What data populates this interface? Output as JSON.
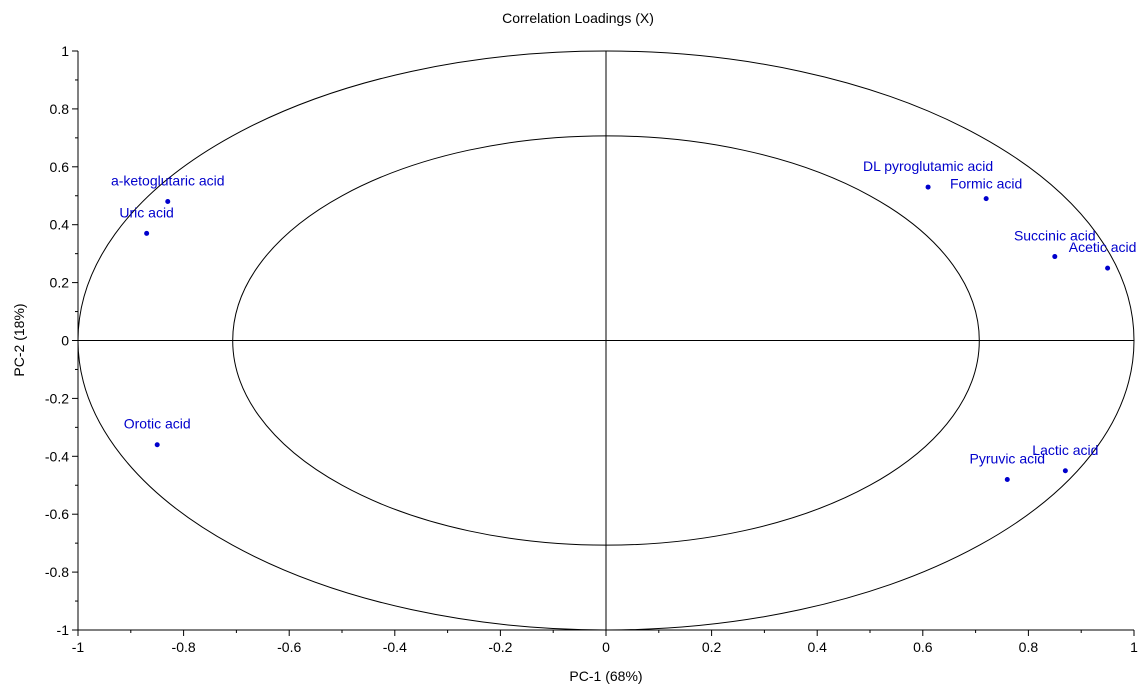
{
  "chart_data": {
    "type": "scatter",
    "title": "Correlation Loadings (X)",
    "xlabel": "PC-1 (68%)",
    "ylabel": "PC-2 (18%)",
    "xlim": [
      -1,
      1
    ],
    "ylim": [
      -1,
      1
    ],
    "x_ticks": [
      -1,
      -0.8,
      -0.6,
      -0.4,
      -0.2,
      0,
      0.2,
      0.4,
      0.6,
      0.8,
      1
    ],
    "y_ticks": [
      -1,
      -0.8,
      -0.6,
      -0.4,
      -0.2,
      0,
      0.2,
      0.4,
      0.6,
      0.8,
      1
    ],
    "circles": [
      1.0,
      0.707
    ],
    "grid": false,
    "point_color": "#0000cc",
    "points": [
      {
        "label": "a-ketoglutaric acid",
        "x": -0.83,
        "y": 0.48
      },
      {
        "label": "Uric acid",
        "x": -0.87,
        "y": 0.37
      },
      {
        "label": "Orotic acid",
        "x": -0.85,
        "y": -0.36
      },
      {
        "label": "DL pyroglutamic acid",
        "x": 0.61,
        "y": 0.53
      },
      {
        "label": "Formic acid",
        "x": 0.72,
        "y": 0.49
      },
      {
        "label": "Succinic acid",
        "x": 0.85,
        "y": 0.29
      },
      {
        "label": "Acetic acid",
        "x": 0.95,
        "y": 0.25
      },
      {
        "label": "Pyruvic acid",
        "x": 0.76,
        "y": -0.48
      },
      {
        "label": "Lactic acid",
        "x": 0.87,
        "y": -0.45
      }
    ]
  }
}
